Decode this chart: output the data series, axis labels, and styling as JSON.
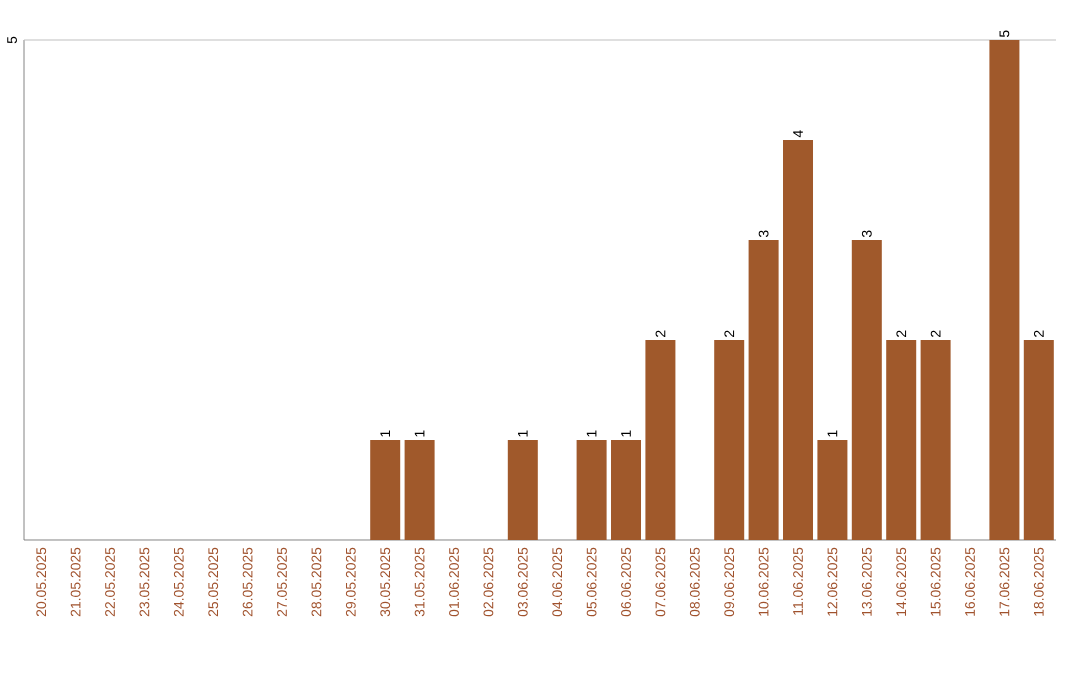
{
  "chart_data": {
    "type": "bar",
    "categories": [
      "20.05.2025",
      "21.05.2025",
      "22.05.2025",
      "23.05.2025",
      "24.05.2025",
      "25.05.2025",
      "26.05.2025",
      "27.05.2025",
      "28.05.2025",
      "29.05.2025",
      "30.05.2025",
      "31.05.2025",
      "01.06.2025",
      "02.06.2025",
      "03.06.2025",
      "04.06.2025",
      "05.06.2025",
      "06.06.2025",
      "07.06.2025",
      "08.06.2025",
      "09.06.2025",
      "10.06.2025",
      "11.06.2025",
      "12.06.2025",
      "13.06.2025",
      "14.06.2025",
      "15.06.2025",
      "16.06.2025",
      "17.06.2025",
      "18.06.2025"
    ],
    "values": [
      0,
      0,
      0,
      0,
      0,
      0,
      0,
      0,
      0,
      0,
      1,
      1,
      0,
      0,
      1,
      0,
      1,
      1,
      2,
      0,
      2,
      3,
      4,
      1,
      3,
      2,
      2,
      0,
      5,
      2
    ],
    "value_labels": [
      null,
      null,
      null,
      null,
      null,
      null,
      null,
      null,
      null,
      null,
      "1",
      "1",
      null,
      null,
      "1",
      null,
      "1",
      "1",
      "2",
      null,
      "2",
      "3",
      "4",
      "1",
      "3",
      "2",
      "2",
      null,
      "5",
      "2"
    ],
    "color": "#a0592b",
    "ylim": [
      0,
      5
    ],
    "yticks": [
      5
    ]
  }
}
